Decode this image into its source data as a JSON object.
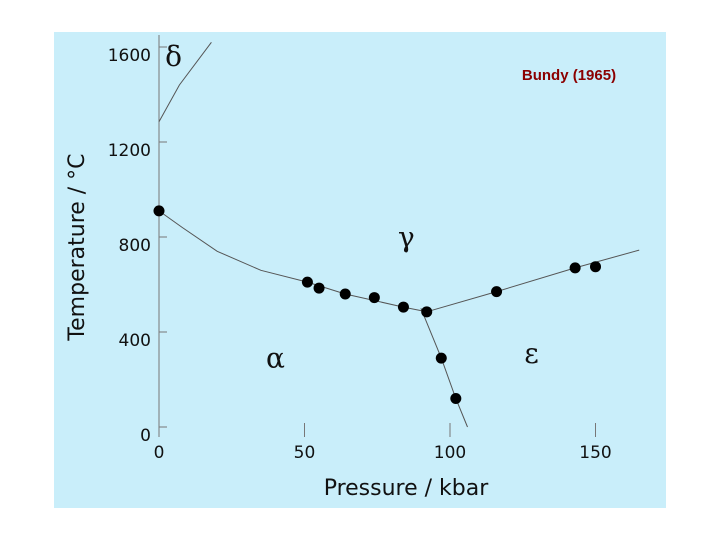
{
  "chart_data": {
    "type": "scatter",
    "title": "",
    "annotation": "Bundy (1965)",
    "xlabel": "Pressure   /  kbar",
    "ylabel_main": "Temperature  /  ",
    "ylabel_unit": "°C",
    "xticks": [
      "0",
      "50",
      "100",
      "150"
    ],
    "yticks": [
      "0",
      "400",
      "800",
      "1200",
      "1600"
    ],
    "xlim": [
      0,
      165
    ],
    "ylim": [
      0,
      1600
    ],
    "grid": false,
    "phase_labels": [
      {
        "label": "δ",
        "x": 5,
        "y": 1520
      },
      {
        "label": "γ",
        "x": 85,
        "y": 760
      },
      {
        "label": "α",
        "x": 40,
        "y": 250
      },
      {
        "label": "ε",
        "x": 128,
        "y": 270
      }
    ],
    "points": [
      {
        "x": 0,
        "y": 910
      },
      {
        "x": 51,
        "y": 610
      },
      {
        "x": 55,
        "y": 585
      },
      {
        "x": 64,
        "y": 560
      },
      {
        "x": 74,
        "y": 545
      },
      {
        "x": 84,
        "y": 505
      },
      {
        "x": 92,
        "y": 485
      },
      {
        "x": 97,
        "y": 290
      },
      {
        "x": 102,
        "y": 120
      },
      {
        "x": 116,
        "y": 570
      },
      {
        "x": 143,
        "y": 670
      },
      {
        "x": 150,
        "y": 675
      }
    ],
    "boundaries": [
      {
        "name": "alpha-gamma",
        "points": [
          [
            0,
            910
          ],
          [
            8,
            840
          ],
          [
            20,
            740
          ],
          [
            35,
            660
          ],
          [
            51,
            610
          ],
          [
            64,
            560
          ],
          [
            84,
            505
          ],
          [
            92,
            485
          ]
        ]
      },
      {
        "name": "alpha-epsilon",
        "points": [
          [
            90,
            500
          ],
          [
            97,
            290
          ],
          [
            102,
            120
          ],
          [
            106,
            0
          ]
        ]
      },
      {
        "name": "gamma-epsilon",
        "points": [
          [
            92,
            485
          ],
          [
            116,
            570
          ],
          [
            143,
            670
          ],
          [
            165,
            745
          ]
        ]
      },
      {
        "name": "gamma-delta",
        "points": [
          [
            0,
            1285
          ],
          [
            7,
            1440
          ],
          [
            18,
            1620
          ]
        ]
      }
    ]
  }
}
